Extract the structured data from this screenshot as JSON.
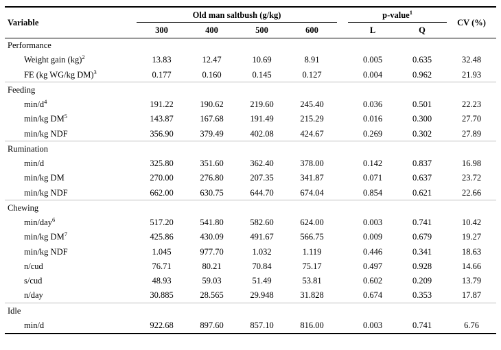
{
  "table": {
    "header": {
      "variable": "Variable",
      "group1": "Old man saltbush (g/kg)",
      "group1_cols": [
        "300",
        "400",
        "500",
        "600"
      ],
      "group2": "p-value",
      "group2_sup": "1",
      "group2_cols": [
        "L",
        "Q"
      ],
      "cv": "CV (%)"
    },
    "sections": [
      {
        "title": "Performance",
        "rows": [
          {
            "label": "Weight gain (kg)",
            "sup": "2",
            "values": [
              "13.83",
              "12.47",
              "10.69",
              "8.91",
              "0.005",
              "0.635",
              "32.48"
            ]
          },
          {
            "label": "FE (kg WG/kg DM)",
            "sup": "3",
            "values": [
              "0.177",
              "0.160",
              "0.145",
              "0.127",
              "0.004",
              "0.962",
              "21.93"
            ]
          }
        ]
      },
      {
        "title": "Feeding",
        "rows": [
          {
            "label": "min/d",
            "sup": "4",
            "values": [
              "191.22",
              "190.62",
              "219.60",
              "245.40",
              "0.036",
              "0.501",
              "22.23"
            ]
          },
          {
            "label": "min/kg DM",
            "sup": "5",
            "values": [
              "143.87",
              "167.68",
              "191.49",
              "215.29",
              "0.016",
              "0.300",
              "27.70"
            ]
          },
          {
            "label": "min/kg NDF",
            "sup": "",
            "values": [
              "356.90",
              "379.49",
              "402.08",
              "424.67",
              "0.269",
              "0.302",
              "27.89"
            ]
          }
        ]
      },
      {
        "title": "Rumination",
        "rows": [
          {
            "label": "min/d",
            "sup": "",
            "values": [
              "325.80",
              "351.60",
              "362.40",
              "378.00",
              "0.142",
              "0.837",
              "16.98"
            ]
          },
          {
            "label": "min/kg DM",
            "sup": "",
            "values": [
              "270.00",
              "276.80",
              "207.35",
              "341.87",
              "0.071",
              "0.637",
              "23.72"
            ]
          },
          {
            "label": "min/kg NDF",
            "sup": "",
            "values": [
              "662.00",
              "630.75",
              "644.70",
              "674.04",
              "0.854",
              "0.621",
              "22.66"
            ]
          }
        ]
      },
      {
        "title": "Chewing",
        "rows": [
          {
            "label": "min/day",
            "sup": "6",
            "values": [
              "517.20",
              "541.80",
              "582.60",
              "624.00",
              "0.003",
              "0.741",
              "10.42"
            ]
          },
          {
            "label": "min/kg DM",
            "sup": "7",
            "values": [
              "425.86",
              "430.09",
              "491.67",
              "566.75",
              "0.009",
              "0.679",
              "19.27"
            ]
          },
          {
            "label": "min/kg NDF",
            "sup": "",
            "values": [
              "1.045",
              "977.70",
              "1.032",
              "1.119",
              "0.446",
              "0.341",
              "18.63"
            ]
          },
          {
            "label": "n/cud",
            "sup": "",
            "values": [
              "76.71",
              "80.21",
              "70.84",
              "75.17",
              "0.497",
              "0.928",
              "14.66"
            ]
          },
          {
            "label": "s/cud",
            "sup": "",
            "values": [
              "48.93",
              "59.03",
              "51.49",
              "53.81",
              "0.602",
              "0.209",
              "13.79"
            ]
          },
          {
            "label": "n/day",
            "sup": "",
            "values": [
              "30.885",
              "28.565",
              "29.948",
              "31.828",
              "0.674",
              "0.353",
              "17.87"
            ]
          }
        ]
      },
      {
        "title": "Idle",
        "rows": [
          {
            "label": "min/d",
            "sup": "",
            "values": [
              "922.68",
              "897.60",
              "857.10",
              "816.00",
              "0.003",
              "0.741",
              "6.76"
            ]
          }
        ]
      }
    ]
  }
}
